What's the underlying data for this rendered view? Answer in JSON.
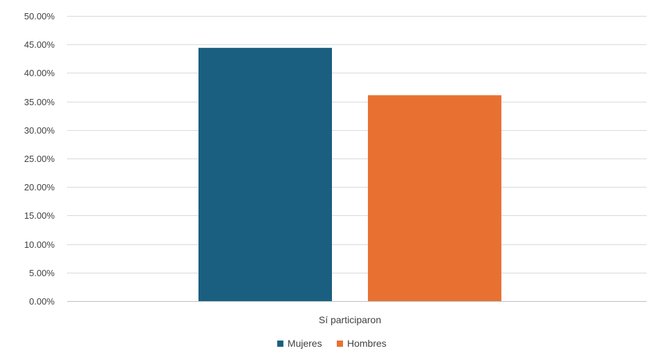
{
  "chart_data": {
    "type": "bar",
    "categories": [
      "Sí participaron"
    ],
    "series": [
      {
        "name": "Mujeres",
        "values": [
          0.444
        ],
        "color": "#1a5f80"
      },
      {
        "name": "Hombres",
        "values": [
          0.361
        ],
        "color": "#e87132"
      }
    ],
    "y_ticks": [
      "0.00%",
      "5.00%",
      "10.00%",
      "15.00%",
      "20.00%",
      "25.00%",
      "30.00%",
      "35.00%",
      "40.00%",
      "45.00%",
      "50.00%"
    ],
    "ylim": [
      0,
      0.5
    ],
    "y_format": "percent, 2 decimals",
    "grid": true,
    "legend_position": "bottom",
    "title": "",
    "xlabel": "",
    "ylabel": ""
  }
}
